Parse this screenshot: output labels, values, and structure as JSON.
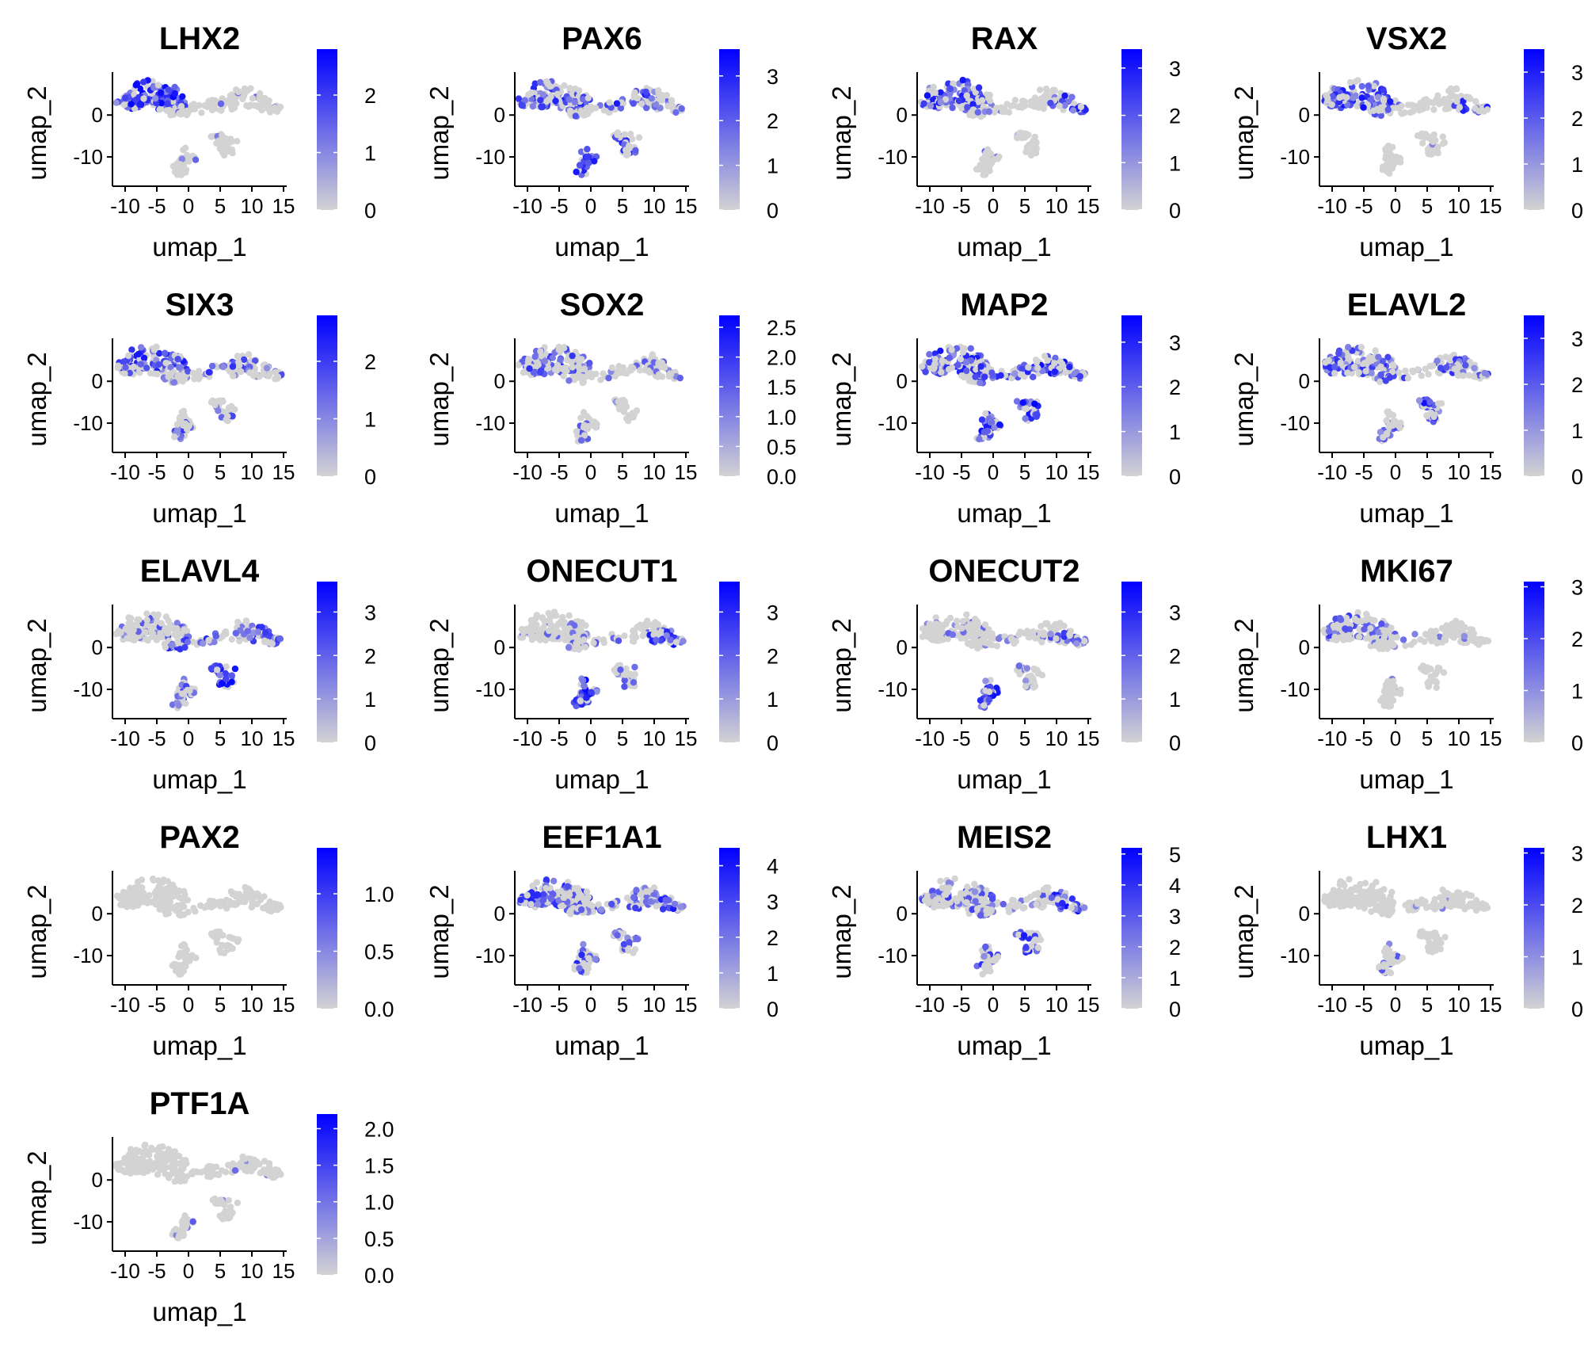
{
  "figure": {
    "palette": {
      "low": "#d3d3d3",
      "high": "#0000ff",
      "axis": "#000000",
      "text": "#000000"
    }
  },
  "chart_data": [
    {
      "type": "scatter",
      "title": "LHX2",
      "xlabel": "umap_1",
      "ylabel": "umap_2",
      "xticks": [
        -10,
        -5,
        0,
        5,
        10,
        15
      ],
      "yticks": [
        0,
        -10
      ],
      "xlim": [
        -12,
        15.5
      ],
      "ylim": [
        -17,
        9.5
      ],
      "color_scale": {
        "min": 0,
        "max": 2.8,
        "ticks": [
          0,
          1,
          2
        ]
      },
      "pattern": [
        0.8,
        0.1,
        0.05,
        0.05,
        0.05,
        0.05
      ],
      "seed": 1
    },
    {
      "type": "scatter",
      "title": "PAX6",
      "xlabel": "umap_1",
      "ylabel": "umap_2",
      "xticks": [
        -10,
        -5,
        0,
        5,
        10,
        15
      ],
      "yticks": [
        0,
        -10
      ],
      "xlim": [
        -12,
        15.5
      ],
      "ylim": [
        -17,
        9.5
      ],
      "color_scale": {
        "min": 0,
        "max": 3.6,
        "ticks": [
          0,
          1,
          2,
          3
        ]
      },
      "pattern": [
        0.6,
        0.15,
        0.55,
        0.8,
        0.5,
        0.3
      ],
      "seed": 2
    },
    {
      "type": "scatter",
      "title": "RAX",
      "xlabel": "umap_1",
      "ylabel": "umap_2",
      "xticks": [
        -10,
        -5,
        0,
        5,
        10,
        15
      ],
      "yticks": [
        0,
        -10
      ],
      "xlim": [
        -12,
        15.5
      ],
      "ylim": [
        -17,
        9.5
      ],
      "color_scale": {
        "min": 0,
        "max": 3.4,
        "ticks": [
          0,
          1,
          2,
          3
        ]
      },
      "pattern": [
        0.6,
        0.2,
        0.05,
        0.05,
        0.1,
        0.6
      ],
      "seed": 3
    },
    {
      "type": "scatter",
      "title": "VSX2",
      "xlabel": "umap_1",
      "ylabel": "umap_2",
      "xticks": [
        -10,
        -5,
        0,
        5,
        10,
        15
      ],
      "yticks": [
        0,
        -10
      ],
      "xlim": [
        -12,
        15.5
      ],
      "ylim": [
        -17,
        9.5
      ],
      "color_scale": {
        "min": 0,
        "max": 3.5,
        "ticks": [
          0,
          1,
          2,
          3
        ]
      },
      "pattern": [
        0.6,
        0.2,
        0.05,
        0.05,
        0.08,
        0.5
      ],
      "seed": 4
    },
    {
      "type": "scatter",
      "title": "SIX3",
      "xlabel": "umap_1",
      "ylabel": "umap_2",
      "xticks": [
        -10,
        -5,
        0,
        5,
        10,
        15
      ],
      "yticks": [
        0,
        -10
      ],
      "xlim": [
        -12,
        15.5
      ],
      "ylim": [
        -17,
        9.5
      ],
      "color_scale": {
        "min": 0,
        "max": 2.8,
        "ticks": [
          0,
          1,
          2
        ]
      },
      "pattern": [
        0.55,
        0.3,
        0.4,
        0.4,
        0.3,
        0.35
      ],
      "seed": 5
    },
    {
      "type": "scatter",
      "title": "SOX2",
      "xlabel": "umap_1",
      "ylabel": "umap_2",
      "xticks": [
        -10,
        -5,
        0,
        5,
        10,
        15
      ],
      "yticks": [
        0,
        -10
      ],
      "xlim": [
        -12,
        15.5
      ],
      "ylim": [
        -17,
        9.5
      ],
      "color_scale": {
        "min": 0,
        "max": 2.7,
        "ticks": [
          0.0,
          0.5,
          1.0,
          1.5,
          2.0,
          2.5
        ],
        "decimals": 1
      },
      "pattern": [
        0.4,
        0.15,
        0.15,
        0.2,
        0.1,
        0.25
      ],
      "seed": 6
    },
    {
      "type": "scatter",
      "title": "MAP2",
      "xlabel": "umap_1",
      "ylabel": "umap_2",
      "xticks": [
        -10,
        -5,
        0,
        5,
        10,
        15
      ],
      "yticks": [
        0,
        -10
      ],
      "xlim": [
        -12,
        15.5
      ],
      "ylim": [
        -17,
        9.5
      ],
      "color_scale": {
        "min": 0,
        "max": 3.6,
        "ticks": [
          0,
          1,
          2,
          3
        ]
      },
      "pattern": [
        0.6,
        0.5,
        0.65,
        0.75,
        0.8,
        0.5
      ],
      "seed": 7
    },
    {
      "type": "scatter",
      "title": "ELAVL2",
      "xlabel": "umap_1",
      "ylabel": "umap_2",
      "xticks": [
        -10,
        -5,
        0,
        5,
        10,
        15
      ],
      "yticks": [
        0,
        -10
      ],
      "xlim": [
        -12,
        15.5
      ],
      "ylim": [
        -17,
        9.5
      ],
      "color_scale": {
        "min": 0,
        "max": 3.5,
        "ticks": [
          0,
          1,
          2,
          3
        ]
      },
      "pattern": [
        0.45,
        0.5,
        0.4,
        0.35,
        0.65,
        0.35
      ],
      "seed": 8
    },
    {
      "type": "scatter",
      "title": "ELAVL4",
      "xlabel": "umap_1",
      "ylabel": "umap_2",
      "xticks": [
        -10,
        -5,
        0,
        5,
        10,
        15
      ],
      "yticks": [
        0,
        -10
      ],
      "xlim": [
        -12,
        15.5
      ],
      "ylim": [
        -17,
        9.5
      ],
      "color_scale": {
        "min": 0,
        "max": 3.7,
        "ticks": [
          0,
          1,
          2,
          3
        ]
      },
      "pattern": [
        0.2,
        0.5,
        0.3,
        0.3,
        0.65,
        0.5
      ],
      "seed": 9
    },
    {
      "type": "scatter",
      "title": "ONECUT1",
      "xlabel": "umap_1",
      "ylabel": "umap_2",
      "xticks": [
        -10,
        -5,
        0,
        5,
        10,
        15
      ],
      "yticks": [
        0,
        -10
      ],
      "xlim": [
        -12,
        15.5
      ],
      "ylim": [
        -17,
        9.5
      ],
      "color_scale": {
        "min": 0,
        "max": 3.7,
        "ticks": [
          0,
          1,
          2,
          3
        ]
      },
      "pattern": [
        0.1,
        0.2,
        0.15,
        0.85,
        0.25,
        0.6
      ],
      "seed": 10
    },
    {
      "type": "scatter",
      "title": "ONECUT2",
      "xlabel": "umap_1",
      "ylabel": "umap_2",
      "xticks": [
        -10,
        -5,
        0,
        5,
        10,
        15
      ],
      "yticks": [
        0,
        -10
      ],
      "xlim": [
        -12,
        15.5
      ],
      "ylim": [
        -17,
        9.5
      ],
      "color_scale": {
        "min": 0,
        "max": 3.7,
        "ticks": [
          0,
          1,
          2,
          3
        ]
      },
      "pattern": [
        0.1,
        0.15,
        0.1,
        0.75,
        0.15,
        0.45
      ],
      "seed": 11
    },
    {
      "type": "scatter",
      "title": "MKI67",
      "xlabel": "umap_1",
      "ylabel": "umap_2",
      "xticks": [
        -10,
        -5,
        0,
        5,
        10,
        15
      ],
      "yticks": [
        0,
        -10
      ],
      "xlim": [
        -12,
        15.5
      ],
      "ylim": [
        -17,
        9.5
      ],
      "color_scale": {
        "min": 0,
        "max": 3.1,
        "ticks": [
          0,
          1,
          2,
          3
        ]
      },
      "pattern": [
        0.35,
        0.05,
        0.02,
        0.02,
        0.02,
        0.05
      ],
      "seed": 12
    },
    {
      "type": "scatter",
      "title": "PAX2",
      "xlabel": "umap_1",
      "ylabel": "umap_2",
      "xticks": [
        -10,
        -5,
        0,
        5,
        10,
        15
      ],
      "yticks": [
        0,
        -10
      ],
      "xlim": [
        -12,
        15.5
      ],
      "ylim": [
        -17,
        9.5
      ],
      "color_scale": {
        "min": 0,
        "max": 1.4,
        "ticks": [
          0.0,
          0.5,
          1.0
        ],
        "decimals": 1
      },
      "pattern": [
        0,
        0,
        0,
        0,
        0,
        0
      ],
      "seed": 13
    },
    {
      "type": "scatter",
      "title": "EEF1A1",
      "xlabel": "umap_1",
      "ylabel": "umap_2",
      "xticks": [
        -10,
        -5,
        0,
        5,
        10,
        15
      ],
      "yticks": [
        0,
        -10
      ],
      "xlim": [
        -12,
        15.5
      ],
      "ylim": [
        -17,
        9.5
      ],
      "color_scale": {
        "min": 0,
        "max": 4.5,
        "ticks": [
          0,
          1,
          2,
          3,
          4
        ]
      },
      "pattern": [
        0.5,
        0.35,
        0.4,
        0.45,
        0.35,
        0.55
      ],
      "seed": 14
    },
    {
      "type": "scatter",
      "title": "MEIS2",
      "xlabel": "umap_1",
      "ylabel": "umap_2",
      "xticks": [
        -10,
        -5,
        0,
        5,
        10,
        15
      ],
      "yticks": [
        0,
        -10
      ],
      "xlim": [
        -12,
        15.5
      ],
      "ylim": [
        -17,
        9.5
      ],
      "color_scale": {
        "min": 0,
        "max": 5.2,
        "ticks": [
          0,
          1,
          2,
          3,
          4,
          5
        ]
      },
      "pattern": [
        0.35,
        0.3,
        0.25,
        0.4,
        0.55,
        0.7
      ],
      "seed": 15
    },
    {
      "type": "scatter",
      "title": "LHX1",
      "xlabel": "umap_1",
      "ylabel": "umap_2",
      "xticks": [
        -10,
        -5,
        0,
        5,
        10,
        15
      ],
      "yticks": [
        0,
        -10
      ],
      "xlim": [
        -12,
        15.5
      ],
      "ylim": [
        -17,
        9.5
      ],
      "color_scale": {
        "min": 0,
        "max": 3.1,
        "ticks": [
          0,
          1,
          2,
          3
        ]
      },
      "pattern": [
        0.01,
        0.05,
        0.05,
        0.2,
        0.03,
        0.03
      ],
      "seed": 16
    },
    {
      "type": "scatter",
      "title": "PTF1A",
      "xlabel": "umap_1",
      "ylabel": "umap_2",
      "xticks": [
        -10,
        -5,
        0,
        5,
        10,
        15
      ],
      "yticks": [
        0,
        -10
      ],
      "xlim": [
        -12,
        15.5
      ],
      "ylim": [
        -17,
        9.5
      ],
      "color_scale": {
        "min": 0,
        "max": 2.2,
        "ticks": [
          0.0,
          0.5,
          1.0,
          1.5,
          2.0
        ],
        "decimals": 1
      },
      "pattern": [
        0.02,
        0.02,
        0.03,
        0.15,
        0.03,
        0.05
      ],
      "seed": 17
    }
  ]
}
